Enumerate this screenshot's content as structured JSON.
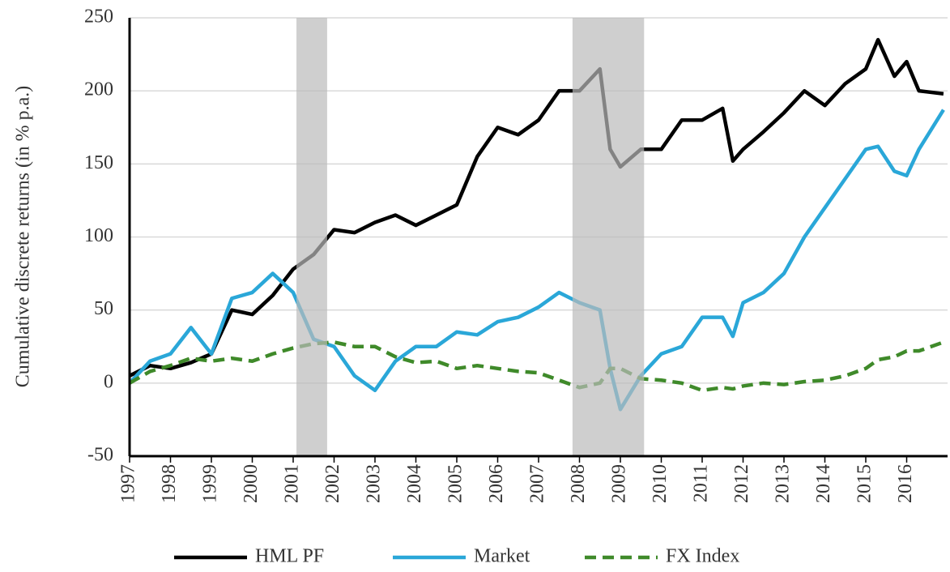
{
  "chart_data": {
    "type": "line",
    "y_label": "Cumulative discrete  returns (in % p.a.)",
    "x": [
      1997.0,
      1997.5,
      1998.0,
      1998.5,
      1999.0,
      1999.5,
      2000.0,
      2000.5,
      2001.0,
      2001.5,
      2002.0,
      2002.5,
      2003.0,
      2003.5,
      2004.0,
      2004.5,
      2005.0,
      2005.5,
      2006.0,
      2006.5,
      2007.0,
      2007.5,
      2008.0,
      2008.5,
      2008.75,
      2009.0,
      2009.5,
      2010.0,
      2010.5,
      2011.0,
      2011.5,
      2011.75,
      2012.0,
      2012.5,
      2013.0,
      2013.5,
      2014.0,
      2014.5,
      2015.0,
      2015.3,
      2015.7,
      2016.0,
      2016.3,
      2016.9
    ],
    "series": [
      {
        "name": "HML PF",
        "color": "#000000",
        "dash": false,
        "values": [
          5,
          12,
          10,
          14,
          20,
          50,
          47,
          60,
          78,
          88,
          105,
          103,
          110,
          115,
          108,
          115,
          122,
          155,
          175,
          170,
          180,
          200,
          200,
          215,
          160,
          148,
          160,
          160,
          180,
          180,
          188,
          152,
          160,
          172,
          185,
          200,
          190,
          205,
          215,
          235,
          210,
          220,
          200,
          198
        ]
      },
      {
        "name": "Market",
        "color": "#2aa7d8",
        "dash": false,
        "values": [
          0,
          15,
          20,
          38,
          20,
          58,
          62,
          75,
          62,
          30,
          25,
          5,
          -5,
          15,
          25,
          25,
          35,
          33,
          42,
          45,
          52,
          62,
          55,
          50,
          10,
          -18,
          5,
          20,
          25,
          45,
          45,
          32,
          55,
          62,
          75,
          100,
          120,
          140,
          160,
          162,
          145,
          142,
          160,
          187
        ]
      },
      {
        "name": "FX Index",
        "color": "#3f8a2a",
        "dash": true,
        "values": [
          0,
          8,
          12,
          17,
          15,
          17,
          15,
          20,
          24,
          27,
          28,
          25,
          25,
          18,
          14,
          15,
          10,
          12,
          10,
          8,
          7,
          2,
          -3,
          0,
          10,
          10,
          3,
          2,
          0,
          -5,
          -3,
          -4,
          -2,
          0,
          -1,
          1,
          2,
          5,
          10,
          16,
          18,
          22,
          22,
          28
        ]
      }
    ],
    "shaded_regions": [
      [
        2001.08,
        2001.83
      ],
      [
        2007.83,
        2009.58
      ]
    ],
    "xlim": [
      1997,
      2017
    ],
    "xticks": [
      1997,
      1998,
      1999,
      2000,
      2001,
      2002,
      2003,
      2004,
      2005,
      2006,
      2007,
      2008,
      2009,
      2010,
      2011,
      2012,
      2013,
      2014,
      2015,
      2016
    ],
    "ylim": [
      -50,
      250
    ],
    "yticks": [
      -50,
      0,
      50,
      100,
      150,
      200,
      250
    ],
    "grid": true,
    "legend": "bottom"
  }
}
